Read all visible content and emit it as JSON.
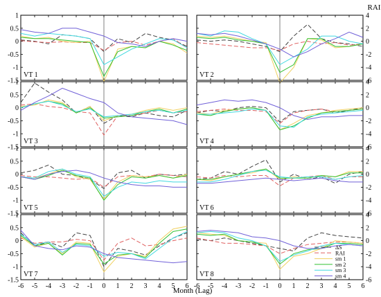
{
  "chart_data": {
    "type": "line",
    "x": [
      -6,
      -5,
      -4,
      -3,
      -2,
      -1,
      0,
      1,
      2,
      3,
      4,
      5,
      6
    ],
    "xlabel": "Month (Lag)",
    "left_axis": {
      "ylim": [
        -1.5,
        1
      ],
      "ticks": [
        "1",
        "0.5",
        "0",
        "-0.5",
        "-1",
        "-1.5"
      ]
    },
    "right_axis": {
      "label": "RAI",
      "ylim": [
        -6,
        4
      ],
      "ticks": [
        "4",
        "2",
        "0",
        "-2",
        "-4",
        "-6"
      ]
    },
    "x_ticks": [
      "-6",
      "-5",
      "-4",
      "-3",
      "-2",
      "-1",
      "0",
      "1",
      "2",
      "3",
      "4",
      "5",
      "6"
    ],
    "legend": {
      "placement": "bottom-right of VT 8 panel",
      "entries": [
        {
          "key": "ds",
          "label": "ΔS"
        },
        {
          "key": "rai",
          "label": "RAI"
        },
        {
          "key": "sm1",
          "label": "sm 1"
        },
        {
          "key": "sm2",
          "label": "sm 2"
        },
        {
          "key": "sm3",
          "label": "sm 3"
        },
        {
          "key": "sm4",
          "label": "sm 4"
        }
      ]
    },
    "series_styles": {
      "ds": {
        "color": "#404040",
        "dash": "6,3"
      },
      "rai": {
        "color": "#e06060",
        "dash": "6,3"
      },
      "sm1": {
        "color": "#f0d060",
        "dash": ""
      },
      "sm2": {
        "color": "#30c030",
        "dash": ""
      },
      "sm3": {
        "color": "#40d8e0",
        "dash": ""
      },
      "sm4": {
        "color": "#7060d8",
        "dash": ""
      }
    },
    "panels": [
      {
        "label": "VT 1",
        "series": {
          "ds": [
            0.05,
            0.0,
            -0.1,
            0.25,
            0.2,
            0.1,
            -0.4,
            0.1,
            -0.05,
            0.3,
            0.15,
            0.05,
            -0.2
          ],
          "rai": [
            0.02,
            -0.02,
            -0.05,
            -0.02,
            -0.05,
            -0.05,
            -0.35,
            -0.05,
            0.0,
            -0.15,
            0.0,
            0.1,
            -0.25
          ],
          "sm1": [
            0.2,
            0.1,
            0.15,
            0.0,
            -0.05,
            0.0,
            -1.55,
            -0.3,
            -0.2,
            -0.25,
            0.0,
            -0.1,
            -0.45
          ],
          "sm2": [
            0.15,
            0.1,
            0.1,
            0.05,
            0.0,
            -0.05,
            -1.35,
            -0.4,
            -0.2,
            -0.25,
            0.0,
            -0.15,
            -0.35
          ],
          "sm3": [
            0.3,
            0.2,
            0.3,
            0.25,
            0.2,
            0.1,
            -0.9,
            -0.6,
            -0.3,
            -0.1,
            0.1,
            0.05,
            -0.25
          ],
          "sm4": [
            0.45,
            0.35,
            0.3,
            0.5,
            0.5,
            0.35,
            0.2,
            -0.05,
            -0.1,
            -0.2,
            0.0,
            0.1,
            0.0
          ]
        }
      },
      {
        "label": "VT 2",
        "series": {
          "ds": [
            0.05,
            0.0,
            0.05,
            0.0,
            -0.1,
            -0.2,
            -0.4,
            0.2,
            0.65,
            0.1,
            -0.05,
            -0.1,
            -0.2
          ],
          "rai": [
            -0.05,
            -0.1,
            -0.15,
            -0.2,
            -0.25,
            -0.25,
            -0.35,
            -0.1,
            0.0,
            -0.1,
            -0.05,
            -0.15,
            -0.1
          ],
          "sm1": [
            0.2,
            0.15,
            0.2,
            0.1,
            0.0,
            -0.05,
            -1.6,
            -1.0,
            0.1,
            0.05,
            -0.25,
            -0.2,
            -0.1
          ],
          "sm2": [
            0.15,
            0.1,
            0.15,
            0.05,
            0.0,
            -0.1,
            -1.2,
            -0.9,
            0.1,
            0.1,
            -0.2,
            -0.2,
            -0.1
          ],
          "sm3": [
            0.3,
            0.2,
            0.4,
            0.35,
            0.1,
            -0.1,
            -0.9,
            -0.6,
            -0.3,
            0.2,
            0.2,
            0.0,
            -0.1
          ],
          "sm4": [
            0.3,
            0.25,
            0.3,
            0.2,
            0.05,
            -0.1,
            -0.3,
            -0.6,
            -0.4,
            -0.1,
            0.1,
            0.35,
            0.15
          ]
        }
      },
      {
        "label": "VT 3",
        "series": {
          "ds": [
            0.2,
            0.95,
            0.6,
            0.3,
            -0.2,
            0.05,
            -0.6,
            -0.3,
            -0.35,
            -0.2,
            -0.3,
            -0.35,
            -0.1
          ],
          "rai": [
            0.1,
            0.15,
            0.05,
            0.0,
            -0.15,
            -0.2,
            -1.05,
            -0.3,
            -0.3,
            -0.2,
            -0.1,
            -0.2,
            -0.15
          ],
          "sm1": [
            0.05,
            0.1,
            0.3,
            0.2,
            -0.2,
            0.05,
            -0.5,
            -0.3,
            -0.25,
            -0.1,
            0.0,
            -0.1,
            0.0
          ],
          "sm2": [
            0.0,
            0.15,
            0.25,
            0.15,
            -0.2,
            0.0,
            -0.4,
            -0.35,
            -0.3,
            -0.15,
            -0.05,
            -0.2,
            -0.05
          ],
          "sm3": [
            0.0,
            0.15,
            0.25,
            0.1,
            -0.15,
            -0.05,
            -0.35,
            -0.3,
            -0.25,
            -0.15,
            -0.1,
            -0.2,
            -0.1
          ],
          "sm4": [
            -0.1,
            0.2,
            0.45,
            0.75,
            0.55,
            0.35,
            0.2,
            -0.2,
            -0.35,
            -0.4,
            -0.45,
            -0.5,
            -0.65
          ]
        }
      },
      {
        "label": "VT 4",
        "series": {
          "ds": [
            -0.2,
            -0.1,
            -0.15,
            0.0,
            0.05,
            0.0,
            -0.55,
            -0.15,
            -0.1,
            -0.05,
            -0.2,
            -0.1,
            0.0
          ],
          "rai": [
            -0.15,
            -0.1,
            -0.05,
            -0.1,
            -0.1,
            -0.15,
            -0.6,
            -0.2,
            -0.1,
            -0.05,
            -0.15,
            -0.1,
            -0.05
          ],
          "sm1": [
            -0.2,
            -0.25,
            -0.1,
            -0.05,
            0.0,
            -0.1,
            -0.85,
            -0.6,
            -0.3,
            -0.2,
            -0.1,
            -0.05,
            0.0
          ],
          "sm2": [
            -0.25,
            -0.3,
            -0.15,
            -0.05,
            0.0,
            -0.1,
            -0.85,
            -0.7,
            -0.4,
            -0.2,
            -0.15,
            -0.1,
            -0.05
          ],
          "sm3": [
            -0.25,
            -0.25,
            -0.2,
            -0.15,
            -0.05,
            -0.1,
            -0.7,
            -0.75,
            -0.35,
            -0.25,
            -0.2,
            -0.15,
            -0.1
          ],
          "sm4": [
            0.1,
            0.2,
            0.3,
            0.25,
            0.3,
            0.2,
            0.0,
            -0.3,
            -0.45,
            -0.35,
            -0.35,
            -0.3,
            -0.3
          ]
        }
      },
      {
        "label": "VT 5",
        "series": {
          "ds": [
            0.05,
            0.15,
            0.35,
            0.0,
            -0.05,
            -0.2,
            -0.55,
            0.05,
            0.15,
            -0.15,
            0.0,
            -0.05,
            0.0
          ],
          "rai": [
            -0.05,
            -0.1,
            -0.1,
            -0.15,
            -0.2,
            -0.15,
            -0.5,
            -0.1,
            -0.05,
            -0.1,
            0.0,
            -0.05,
            -0.1
          ],
          "sm1": [
            -0.1,
            -0.15,
            0.0,
            0.2,
            -0.1,
            -0.2,
            -0.95,
            -0.3,
            -0.05,
            -0.1,
            -0.05,
            -0.15,
            0.0
          ],
          "sm2": [
            -0.1,
            -0.2,
            -0.05,
            0.15,
            -0.05,
            -0.15,
            -1.0,
            -0.4,
            -0.1,
            -0.15,
            -0.05,
            -0.15,
            -0.05
          ],
          "sm3": [
            -0.1,
            -0.15,
            0.1,
            0.2,
            0.0,
            -0.1,
            -0.85,
            -0.5,
            -0.3,
            -0.35,
            -0.25,
            -0.3,
            -0.3
          ],
          "sm4": [
            -0.1,
            -0.2,
            0.0,
            0.1,
            0.15,
            0.05,
            -0.15,
            -0.3,
            -0.4,
            -0.45,
            -0.45,
            -0.5,
            -0.5
          ]
        }
      },
      {
        "label": "VT 6",
        "series": {
          "ds": [
            -0.2,
            -0.15,
            0.1,
            0.0,
            0.3,
            0.55,
            -0.3,
            0.0,
            -0.2,
            -0.1,
            -0.35,
            0.0,
            0.1
          ],
          "rai": [
            -0.1,
            -0.15,
            -0.05,
            -0.1,
            -0.05,
            -0.05,
            -0.45,
            -0.15,
            -0.1,
            -0.05,
            -0.2,
            -0.1,
            -0.1
          ],
          "sm1": [
            -0.2,
            -0.25,
            -0.1,
            0.0,
            0.05,
            0.2,
            -0.2,
            -0.1,
            -0.15,
            -0.05,
            -0.1,
            0.1,
            0.1
          ],
          "sm2": [
            -0.2,
            -0.2,
            -0.1,
            0.0,
            0.1,
            0.2,
            -0.15,
            -0.15,
            -0.15,
            -0.05,
            -0.1,
            0.05,
            0.05
          ],
          "sm3": [
            -0.3,
            -0.3,
            -0.2,
            -0.05,
            0.1,
            0.15,
            -0.1,
            -0.15,
            -0.1,
            -0.1,
            -0.2,
            -0.1,
            -0.05
          ],
          "sm4": [
            -0.35,
            -0.35,
            -0.3,
            -0.25,
            -0.2,
            -0.15,
            -0.2,
            -0.25,
            -0.2,
            -0.15,
            -0.25,
            -0.3,
            -0.3
          ]
        }
      },
      {
        "label": "VT 7",
        "series": {
          "ds": [
            0.3,
            -0.2,
            -0.05,
            -0.25,
            0.3,
            0.2,
            -1.0,
            -0.3,
            -0.4,
            -0.55,
            -0.2,
            0.1,
            0.3
          ],
          "rai": [
            0.1,
            -0.1,
            -0.05,
            -0.05,
            0.05,
            0.0,
            -0.75,
            -0.1,
            0.1,
            -0.2,
            -0.15,
            0.0,
            0.1
          ],
          "sm1": [
            0.15,
            -0.25,
            -0.1,
            -0.5,
            -0.05,
            -0.1,
            -1.2,
            -0.6,
            -0.5,
            -0.6,
            0.0,
            0.45,
            0.55
          ],
          "sm2": [
            0.2,
            -0.2,
            -0.1,
            -0.55,
            -0.1,
            -0.15,
            -0.9,
            -0.55,
            -0.5,
            -0.65,
            -0.1,
            0.35,
            0.45
          ],
          "sm3": [
            0.25,
            -0.15,
            -0.05,
            -0.45,
            -0.15,
            -0.2,
            -0.6,
            -0.45,
            -0.5,
            -0.7,
            -0.3,
            0.1,
            0.35
          ],
          "sm4": [
            0.4,
            -0.2,
            -0.3,
            -0.35,
            -0.2,
            -0.25,
            -0.5,
            -0.65,
            -0.7,
            -0.75,
            -0.8,
            -0.85,
            -0.8
          ]
        }
      },
      {
        "label": "VT 8",
        "series": {
          "ds": [
            0.05,
            0.0,
            0.1,
            0.0,
            -0.1,
            -0.2,
            -0.3,
            -0.4,
            0.1,
            0.3,
            0.2,
            0.15,
            0.1
          ],
          "rai": [
            0.1,
            0.0,
            -0.1,
            -0.1,
            -0.15,
            -0.2,
            -0.5,
            -0.3,
            -0.15,
            -0.1,
            -0.05,
            -0.05,
            -0.1
          ],
          "sm1": [
            0.3,
            0.25,
            0.2,
            0.0,
            -0.05,
            -0.1,
            -1.1,
            -0.6,
            -0.5,
            -0.3,
            0.0,
            -0.05,
            -0.1
          ],
          "sm2": [
            0.25,
            0.2,
            0.25,
            0.0,
            -0.05,
            -0.2,
            -0.9,
            -0.5,
            -0.35,
            -0.3,
            -0.1,
            -0.1,
            -0.15
          ],
          "sm3": [
            0.3,
            0.35,
            0.3,
            0.1,
            0.0,
            -0.2,
            -0.8,
            -0.55,
            -0.4,
            -0.2,
            -0.1,
            -0.15,
            -0.2
          ],
          "sm4": [
            0.35,
            0.4,
            0.35,
            0.3,
            0.15,
            0.1,
            0.0,
            -0.2,
            -0.3,
            -0.3,
            -0.2,
            -0.15,
            -0.2
          ]
        }
      }
    ]
  }
}
